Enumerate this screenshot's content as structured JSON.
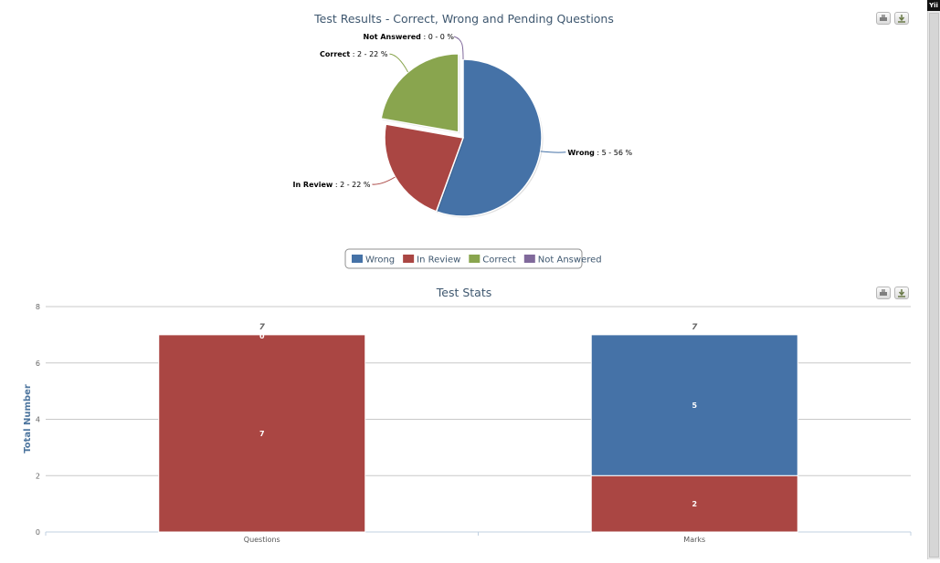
{
  "colors": {
    "wrong": "#4572a7",
    "in_review": "#aa4643",
    "correct": "#89a54e",
    "not_answered": "#80699b",
    "title": "#3e576f",
    "axis_title": "#4d759e"
  },
  "top_right_badge": "Yii",
  "chart_data": [
    {
      "type": "pie",
      "title": "Test Results - Correct, Wrong and Pending Questions",
      "slices": [
        {
          "name": "Wrong",
          "value": 5,
          "label": "Wrong",
          "detail": ": 5 - 56 %",
          "color": "#4572a7"
        },
        {
          "name": "In Review",
          "value": 2,
          "label": "In Review",
          "detail": ": 2 - 22 %",
          "color": "#aa4643"
        },
        {
          "name": "Correct",
          "value": 2,
          "label": "Correct",
          "detail": ": 2 - 22 %",
          "color": "#89a54e",
          "sliced": true
        },
        {
          "name": "Not Answered",
          "value": 0,
          "label": "Not Answered",
          "detail": ": 0 - 0 %",
          "color": "#80699b"
        }
      ],
      "legend": {
        "position": "bottom-center",
        "items": [
          "Wrong",
          "In Review",
          "Correct",
          "Not Answered"
        ]
      }
    },
    {
      "type": "bar",
      "stacked": true,
      "title": "Test Stats",
      "categories": [
        "Questions",
        "Marks"
      ],
      "ylabel": "Total Number",
      "ylim": [
        0,
        8
      ],
      "yticks": [
        "0",
        "2",
        "4",
        "6",
        "8"
      ],
      "grid": true,
      "series": [
        {
          "name": "In Review",
          "values": [
            7,
            2
          ],
          "labels": [
            "7",
            "2"
          ],
          "color": "#aa4643"
        },
        {
          "name": "Wrong",
          "values": [
            0,
            5
          ],
          "labels": [
            "0",
            "5"
          ],
          "color": "#4572a7"
        }
      ],
      "totals": [
        "7",
        "7"
      ]
    }
  ]
}
